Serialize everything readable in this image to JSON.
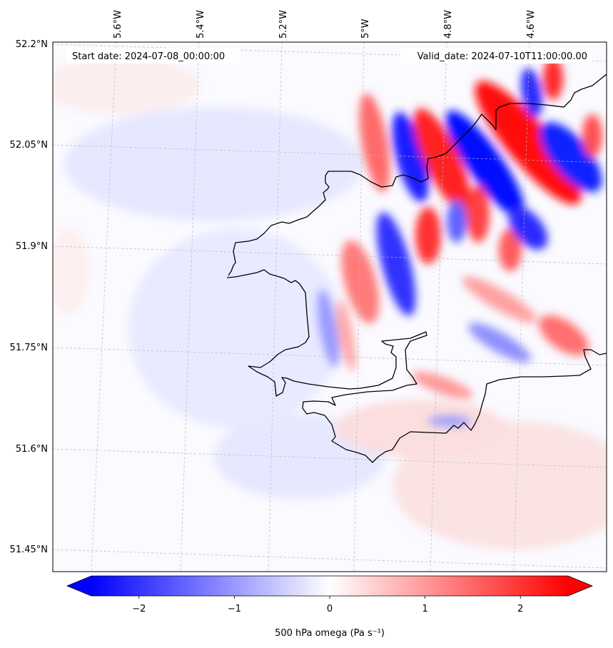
{
  "map": {
    "start_label": "Start date: 2024-07-08_00:00:00",
    "valid_label": "Valid_date: 2024-07-10T11:00:00.00",
    "lon_labels": [
      "5.6°W",
      "5.4°W",
      "5.2°W",
      "5°W",
      "4.8°W",
      "4.6°W"
    ],
    "lat_labels": [
      "52.2°N",
      "52.05°N",
      "51.9°N",
      "51.75°N",
      "51.6°N",
      "51.45°N"
    ],
    "colormap": "bwr",
    "colors": {
      "negative": "#0000ff",
      "neutral": "#ffffff",
      "positive": "#ff0000",
      "coastline": "#000000",
      "gridline": "#b0b0b0"
    }
  },
  "colorbar": {
    "ticks": [
      "−2",
      "−1",
      "0",
      "1",
      "2"
    ],
    "tick_values": [
      -2,
      -1,
      0,
      1,
      2
    ],
    "range": [
      -2.5,
      2.5
    ],
    "label": "500 hPa omega (Pa s⁻¹)",
    "extend": "both"
  }
}
